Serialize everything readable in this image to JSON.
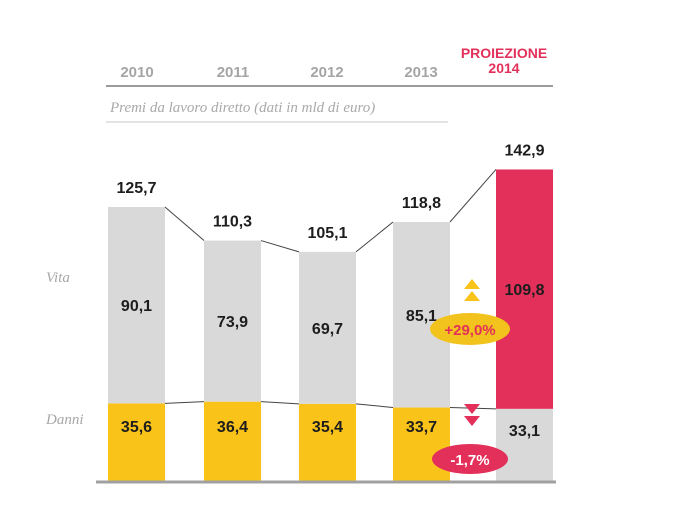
{
  "chart_data": {
    "type": "bar",
    "stacked": true,
    "subtitle": "Premi da lavoro diretto (dati in mld di euro)",
    "categories": [
      "2010",
      "2011",
      "2012",
      "2013",
      "2014"
    ],
    "projection_header": [
      "PROIEZIONE",
      "2014"
    ],
    "series": [
      {
        "name": "Vita",
        "values": [
          90.1,
          73.9,
          69.7,
          85.1,
          109.8
        ],
        "labels": [
          "90,1",
          "73,9",
          "69,7",
          "85,1",
          "109,8"
        ]
      },
      {
        "name": "Danni",
        "values": [
          35.6,
          36.4,
          35.4,
          33.7,
          33.1
        ],
        "labels": [
          "35,6",
          "36,4",
          "35,4",
          "33,7",
          "33,1"
        ]
      }
    ],
    "totals": [
      125.7,
      110.3,
      105.1,
      118.8,
      142.9
    ],
    "total_labels": [
      "125,7",
      "110,3",
      "105,1",
      "118,8",
      "142,9"
    ],
    "annotations": [
      {
        "series": "Vita",
        "text": "+29,0%",
        "direction": "up",
        "color": "#f2c21d"
      },
      {
        "series": "Danni",
        "text": "-1,7%",
        "direction": "down",
        "color": "#e3305a"
      }
    ],
    "colors": {
      "vita": "#d9d9d9",
      "danni": "#f9c31a",
      "projection_vita": "#e3305a",
      "projection_danni": "#d9d9d9",
      "label_text": "#1d1d1d",
      "axis_text": "#a5a5a5"
    }
  }
}
